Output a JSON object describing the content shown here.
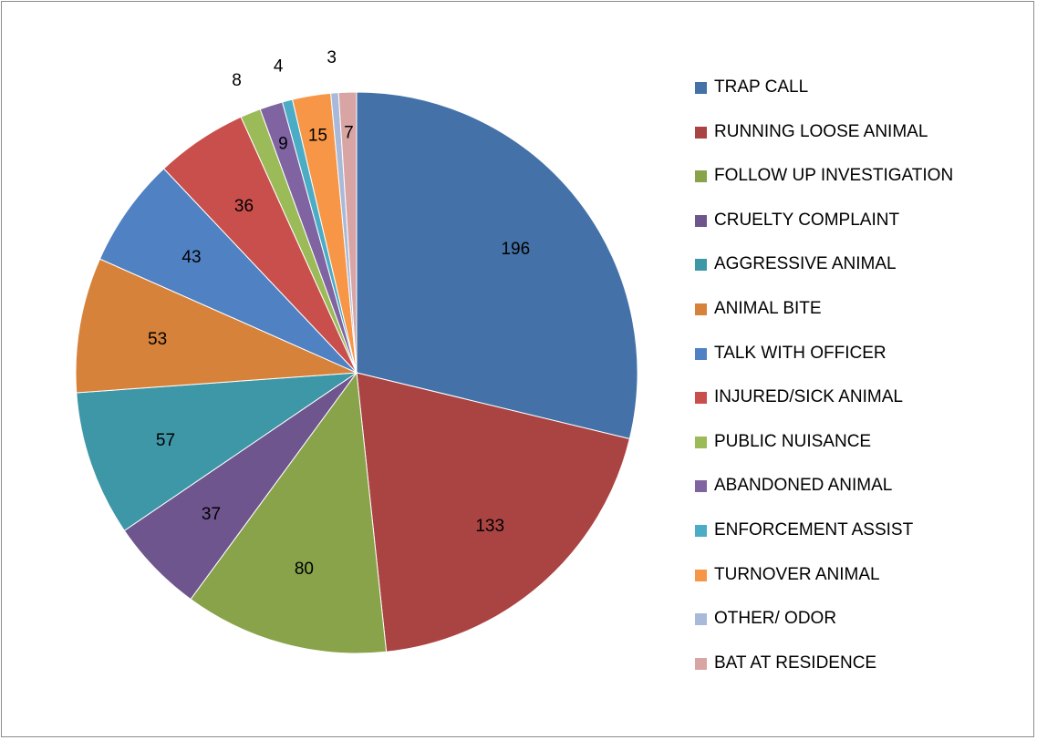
{
  "chart_data": {
    "type": "pie",
    "title": "",
    "start_angle_deg": 0,
    "direction": "clockwise",
    "legend_position": "right",
    "slices": [
      {
        "label": "TRAP CALL",
        "value": 196,
        "color": "#4472a8"
      },
      {
        "label": "RUNNING LOOSE ANIMAL",
        "value": 133,
        "color": "#aa4442"
      },
      {
        "label": "FOLLOW UP INVESTIGATION",
        "value": 80,
        "color": "#88a34a"
      },
      {
        "label": "CRUELTY COMPLAINT",
        "value": 37,
        "color": "#6e558e"
      },
      {
        "label": "AGGRESSIVE ANIMAL",
        "value": 57,
        "color": "#3e97a6"
      },
      {
        "label": "ANIMAL BITE",
        "value": 53,
        "color": "#d6823a"
      },
      {
        "label": "TALK WITH OFFICER",
        "value": 43,
        "color": "#4f81c3"
      },
      {
        "label": "INJURED/SICK ANIMAL",
        "value": 36,
        "color": "#c94f4c"
      },
      {
        "label": "PUBLIC NUISANCE",
        "value": 8,
        "color": "#9bbb59"
      },
      {
        "label": "ABANDONED ANIMAL",
        "value": 9,
        "color": "#8064a2"
      },
      {
        "label": "ENFORCEMENT ASSIST",
        "value": 4,
        "color": "#4bacc6"
      },
      {
        "label": "TURNOVER ANIMAL",
        "value": 15,
        "color": "#f79646"
      },
      {
        "label": "OTHER/ ODOR",
        "value": 3,
        "color": "#a9b9d9"
      },
      {
        "label": "BAT AT RESIDENCE",
        "value": 7,
        "color": "#d9a5a4"
      }
    ]
  }
}
